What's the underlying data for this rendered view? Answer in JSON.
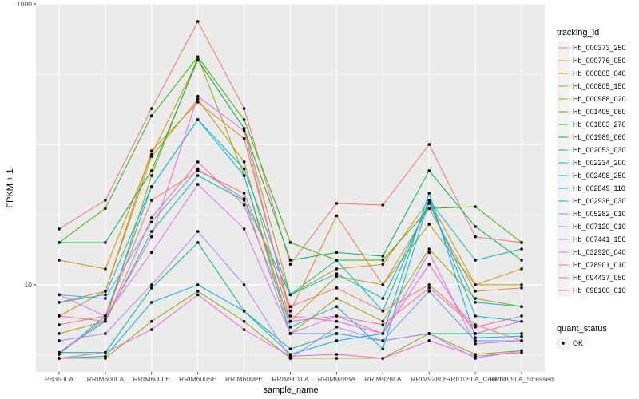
{
  "chart_data": {
    "type": "line",
    "xlabel": "sample_name",
    "ylabel": "FPKM + 1",
    "y_scale": "log10",
    "ylim": [
      2.4,
      1000
    ],
    "y_ticks": [
      10,
      1000
    ],
    "y_tick_labels": [
      "10",
      "1000"
    ],
    "grid": true,
    "legend_position": "right",
    "categories": [
      "PB350LA",
      "RRIM600LA",
      "RRIM600LE",
      "RRIM600SE",
      "RRIM600PE",
      "RRIM901LA",
      "RRIM928BA",
      "RRIM928LA",
      "RRIM928LE",
      "RRII105LA_Control",
      "RRII105LA_Stressed"
    ],
    "legend_title": "tracking_id",
    "series": [
      {
        "name": "Hb_000373_250",
        "color": "#F8766D",
        "values": [
          25,
          40,
          180,
          750,
          180,
          14,
          38,
          37,
          100,
          22,
          20
        ]
      },
      {
        "name": "Hb_000776_050",
        "color": "#EA8331",
        "values": [
          7.5,
          9,
          90,
          200,
          110,
          6.5,
          31,
          10,
          35,
          9,
          9.5
        ]
      },
      {
        "name": "Hb_000805_040",
        "color": "#D89000",
        "values": [
          15,
          13,
          85,
          400,
          130,
          8.5,
          13,
          14,
          40,
          10,
          13
        ]
      },
      {
        "name": "Hb_000805_150",
        "color": "#C09B00",
        "values": [
          6,
          9,
          82,
          210,
          75,
          5.5,
          11.5,
          10,
          27,
          10,
          10
        ]
      },
      {
        "name": "Hb_000988_020",
        "color": "#A3A500",
        "values": [
          4.5,
          5.5,
          60,
          420,
          60,
          4.5,
          8,
          5.5,
          18,
          8,
          7
        ]
      },
      {
        "name": "Hb_001405_060",
        "color": "#7CAE00",
        "values": [
          3,
          3,
          5.5,
          9,
          5.5,
          3,
          3,
          3,
          4.5,
          3.2,
          3.4
        ]
      },
      {
        "name": "Hb_001863_270",
        "color": "#39B600",
        "values": [
          20,
          35,
          160,
          420,
          150,
          20,
          15,
          15,
          35,
          36,
          20
        ]
      },
      {
        "name": "Hb_001989_060",
        "color": "#00BB4E",
        "values": [
          20,
          20,
          65,
          400,
          130,
          15,
          17,
          16,
          65,
          26,
          15
        ]
      },
      {
        "name": "Hb_002053_030",
        "color": "#00BF7D",
        "values": [
          3.3,
          3.3,
          9.5,
          20,
          6.5,
          3.5,
          4.5,
          4,
          4.5,
          4.5,
          4.5
        ]
      },
      {
        "name": "Hb_002234_200",
        "color": "#00C1A3",
        "values": [
          3.3,
          5.5,
          24,
          60,
          40,
          8.5,
          15,
          6.5,
          40,
          15,
          18
        ]
      },
      {
        "name": "Hb_002498_250",
        "color": "#00BFC4",
        "values": [
          7.5,
          8.5,
          50,
          150,
          67,
          8.5,
          12,
          8,
          38,
          7.5,
          7
        ]
      },
      {
        "name": "Hb_002849_110",
        "color": "#00B9E3",
        "values": [
          3.2,
          6,
          50,
          150,
          60,
          5,
          7,
          3.5,
          40,
          6,
          5.5
        ]
      },
      {
        "name": "Hb_002936_030",
        "color": "#00ADFA",
        "values": [
          3,
          3.1,
          7.5,
          10,
          6.5,
          3.2,
          4,
          4.5,
          45,
          4.2,
          4.3
        ]
      },
      {
        "name": "Hb_005282_010",
        "color": "#619CFF",
        "values": [
          8.5,
          8,
          28,
          67,
          41,
          4.5,
          4.5,
          4,
          9,
          4,
          4
        ]
      },
      {
        "name": "Hb_007120_010",
        "color": "#AE87FF",
        "values": [
          4,
          4.5,
          10,
          24,
          10,
          3,
          5,
          4,
          4.5,
          3,
          3.4
        ]
      },
      {
        "name": "Hb_007441_150",
        "color": "#DB72FB",
        "values": [
          8.5,
          6,
          17,
          52,
          25,
          4.5,
          6,
          4.5,
          17,
          3.8,
          4
        ]
      },
      {
        "name": "Hb_032920_040",
        "color": "#F564E3",
        "values": [
          3.3,
          5.7,
          22,
          220,
          125,
          6,
          5.5,
          4.5,
          14,
          4.5,
          5.5
        ]
      },
      {
        "name": "Hb_078901_010",
        "color": "#FF61C3",
        "values": [
          3,
          3.3,
          4.8,
          8.5,
          4.8,
          3.1,
          3.2,
          3,
          4,
          3.1,
          3.3
        ]
      },
      {
        "name": "Hb_094437_050",
        "color": "#FF6C91",
        "values": [
          6,
          5.5,
          30,
          75,
          37,
          5.5,
          6,
          5.2,
          9.5,
          5,
          6
        ]
      },
      {
        "name": "Hb_098160_010",
        "color": "#F8766D",
        "values": [
          5.2,
          6,
          40,
          65,
          45,
          7,
          9.5,
          6.5,
          10,
          5.2,
          4
        ]
      }
    ],
    "shape_legend_title": "quant_status",
    "shape_legend_items": [
      "OK"
    ]
  }
}
